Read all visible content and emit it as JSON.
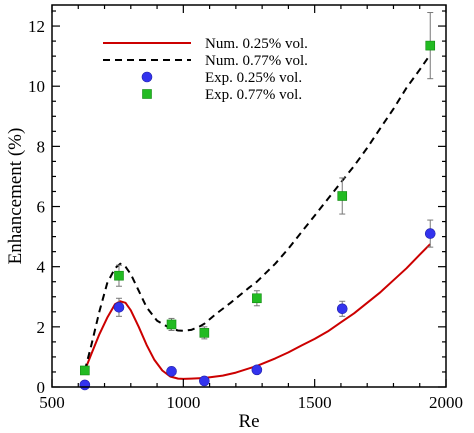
{
  "chart_data": {
    "type": "line",
    "title": "",
    "xlabel": "Re",
    "ylabel": "Enhancement (%)",
    "xlim": [
      500,
      2000
    ],
    "ylim": [
      0,
      12.7
    ],
    "xticks": [
      500,
      1000,
      1500,
      2000
    ],
    "yticks": [
      0,
      2,
      4,
      6,
      8,
      10,
      12
    ],
    "grid": false,
    "legend_position": "top-left",
    "series": [
      {
        "name": "Num. 0.25% vol.",
        "kind": "line",
        "style": "solid",
        "color": "#cc0000",
        "x": [
          625,
          650,
          680,
          710,
          740,
          760,
          780,
          800,
          830,
          860,
          890,
          920,
          950,
          980,
          1000,
          1030,
          1080,
          1150,
          1200,
          1280,
          1350,
          1400,
          1450,
          1500,
          1550,
          1600,
          1650,
          1700,
          1750,
          1800,
          1850,
          1900,
          1940
        ],
        "y": [
          0.55,
          1.1,
          1.75,
          2.3,
          2.75,
          2.85,
          2.8,
          2.55,
          2.0,
          1.4,
          0.9,
          0.55,
          0.35,
          0.28,
          0.27,
          0.28,
          0.3,
          0.38,
          0.48,
          0.7,
          0.95,
          1.15,
          1.38,
          1.6,
          1.85,
          2.15,
          2.45,
          2.8,
          3.15,
          3.55,
          3.95,
          4.4,
          4.75
        ]
      },
      {
        "name": "Num. 0.77% vol.",
        "kind": "line",
        "style": "dashed",
        "color": "#000000",
        "x": [
          625,
          650,
          680,
          710,
          740,
          760,
          780,
          800,
          830,
          860,
          900,
          950,
          980,
          1000,
          1030,
          1060,
          1080,
          1120,
          1180,
          1250,
          1280,
          1350,
          1400,
          1450,
          1500,
          1550,
          1600,
          1650,
          1700,
          1750,
          1800,
          1850,
          1900,
          1940
        ],
        "y": [
          0.55,
          1.4,
          2.5,
          3.45,
          3.95,
          4.1,
          4.0,
          3.75,
          3.2,
          2.65,
          2.2,
          1.95,
          1.88,
          1.87,
          1.9,
          2.0,
          2.1,
          2.4,
          2.8,
          3.3,
          3.5,
          4.1,
          4.6,
          5.15,
          5.7,
          6.25,
          6.8,
          7.35,
          7.95,
          8.6,
          9.25,
          9.95,
          10.55,
          11.05
        ]
      },
      {
        "name": "Exp. 0.25% vol.",
        "kind": "points",
        "marker": "circle",
        "color": "#3333ee",
        "x": [
          625,
          755,
          955,
          1080,
          1280,
          1605,
          1940
        ],
        "y": [
          0.07,
          2.65,
          0.52,
          0.2,
          0.57,
          2.6,
          5.1
        ],
        "yerr": [
          0.05,
          0.3,
          0.05,
          0.05,
          0.05,
          0.25,
          0.45
        ]
      },
      {
        "name": "Exp. 0.77% vol.",
        "kind": "points",
        "marker": "square",
        "color": "#22bb22",
        "x": [
          625,
          755,
          955,
          1080,
          1280,
          1605,
          1940
        ],
        "y": [
          0.55,
          3.7,
          2.08,
          1.8,
          2.95,
          6.35,
          11.35
        ],
        "yerr": [
          0.05,
          0.35,
          0.2,
          0.2,
          0.25,
          0.6,
          1.1
        ]
      }
    ]
  }
}
